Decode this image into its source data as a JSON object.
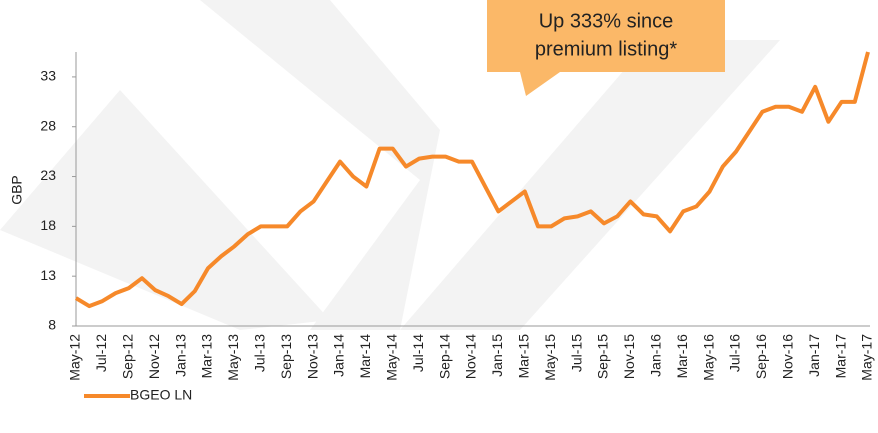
{
  "chart_data": {
    "type": "line",
    "ylabel": "GBP",
    "categories": [
      "May-12",
      null,
      "Jul-12",
      null,
      "Sep-12",
      null,
      "Nov-12",
      null,
      "Jan-13",
      null,
      "Mar-13",
      null,
      "May-13",
      null,
      "Jul-13",
      null,
      "Sep-13",
      null,
      "Nov-13",
      null,
      "Jan-14",
      null,
      "Mar-14",
      null,
      "May-14",
      null,
      "Jul-14",
      null,
      "Sep-14",
      null,
      "Nov-14",
      null,
      "Jan-15",
      null,
      "Mar-15",
      null,
      "May-15",
      null,
      "Jul-15",
      null,
      "Sep-15",
      null,
      "Nov-15",
      null,
      "Jan-16",
      null,
      "Mar-16",
      null,
      "May-16",
      null,
      "Jul-16",
      null,
      "Sep-16",
      null,
      "Nov-16",
      null,
      "Jan-17",
      null,
      "Mar-17",
      null,
      "May-17"
    ],
    "series": [
      {
        "name": "BGEO LN",
        "color": "#f6892a",
        "values": [
          10.8,
          10,
          10.5,
          11.3,
          11.8,
          12.8,
          11.6,
          11,
          10.2,
          11.5,
          13.8,
          15,
          16,
          17.2,
          18,
          18,
          18,
          19.5,
          20.5,
          22.5,
          24.5,
          23,
          22,
          25.8,
          25.8,
          24,
          24.8,
          25,
          25,
          24.5,
          24.5,
          22,
          19.5,
          20.5,
          21.5,
          18,
          18,
          18.8,
          19,
          19.5,
          18.3,
          19,
          20.5,
          19.2,
          19,
          17.5,
          19.5,
          20,
          21.5,
          24,
          25.5,
          27.5,
          29.5,
          30,
          30,
          29.5,
          32,
          28.5,
          30.5,
          30.5,
          35.5
        ]
      }
    ],
    "ylim": [
      8,
      35.5
    ],
    "yticks": [
      8,
      13,
      18,
      23,
      28,
      33
    ],
    "annotation": [
      "Up 333% since",
      "premium listing*"
    ],
    "legend": "bottom-left"
  }
}
